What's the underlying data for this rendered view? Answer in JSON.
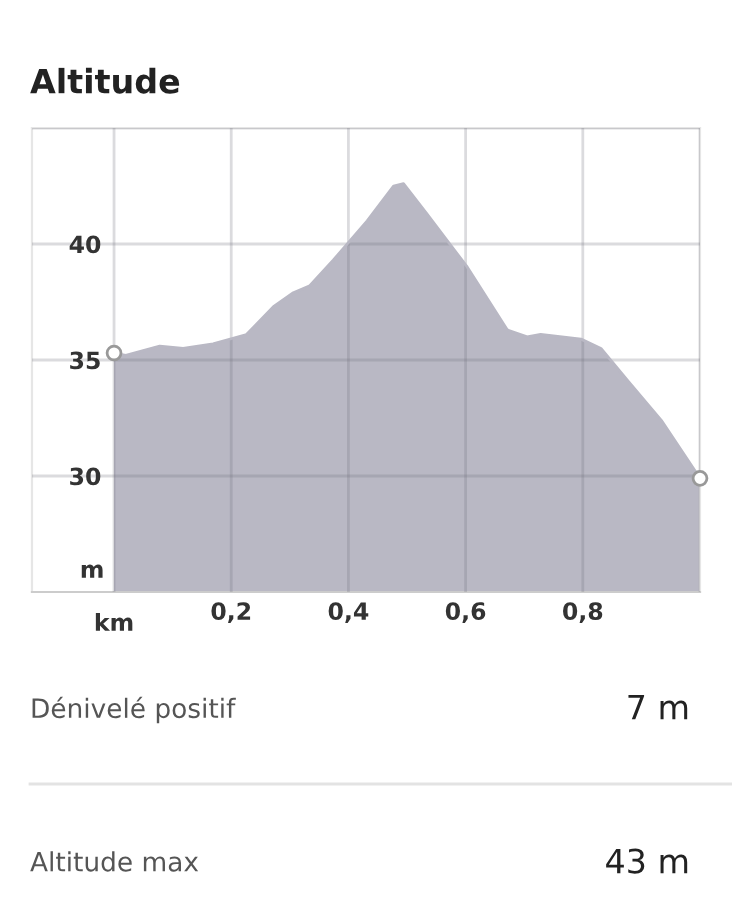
{
  "chart_data": {
    "type": "area",
    "title": "Altitude",
    "xlabel": "km",
    "ylabel": "m",
    "x": [
      0,
      0.02,
      0.078,
      0.118,
      0.169,
      0.226,
      0.272,
      0.306,
      0.334,
      0.374,
      0.432,
      0.477,
      0.494,
      0.534,
      0.603,
      0.671,
      0.705,
      0.728,
      0.797,
      0.831,
      0.877,
      0.934,
      1.0
    ],
    "series": [
      {
        "color": "#b9b8c4",
        "values": [
          35.3,
          35.2,
          35.6,
          35.5,
          35.7,
          36.1,
          37.3,
          37.9,
          38.2,
          39.3,
          41.0,
          42.5,
          42.6,
          41.3,
          39.0,
          36.3,
          36.0,
          36.1,
          35.9,
          35.5,
          34.1,
          32.4,
          29.9
        ]
      },
      {
        "type": "scatter",
        "x": [
          0,
          1.0
        ],
        "color": "#ffffff",
        "values": [
          35.3,
          29.9
        ]
      }
    ],
    "xlim": [
      -0.14,
      1.0
    ],
    "ylim": [
      25,
      45
    ],
    "xticks": [
      {
        "value": 0,
        "label": null
      },
      {
        "value": 0.2,
        "label": "0,2"
      },
      {
        "value": 0.4,
        "label": "0,4"
      },
      {
        "value": 0.6,
        "label": "0,6"
      },
      {
        "value": 0.8,
        "label": "0,8"
      },
      {
        "value": 1.0,
        "label": null
      }
    ],
    "yticks": [
      30,
      35,
      40,
      {
        "value": 45,
        "label": null
      }
    ],
    "grid": true,
    "annotations": [
      "Dénivelé positif",
      "7 m",
      "Altitude max",
      "43 m"
    ]
  }
}
